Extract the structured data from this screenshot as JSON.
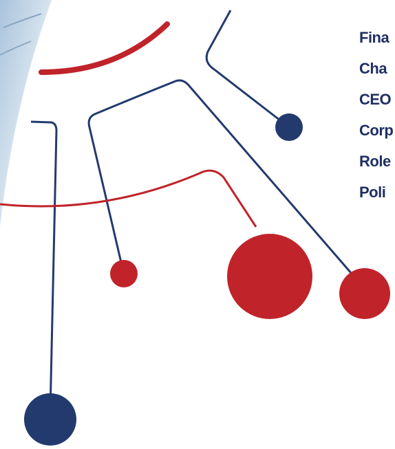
{
  "menu": {
    "items": [
      "Fina",
      "Cha",
      "CEO",
      "Corp",
      "Role",
      "Poli"
    ]
  }
}
